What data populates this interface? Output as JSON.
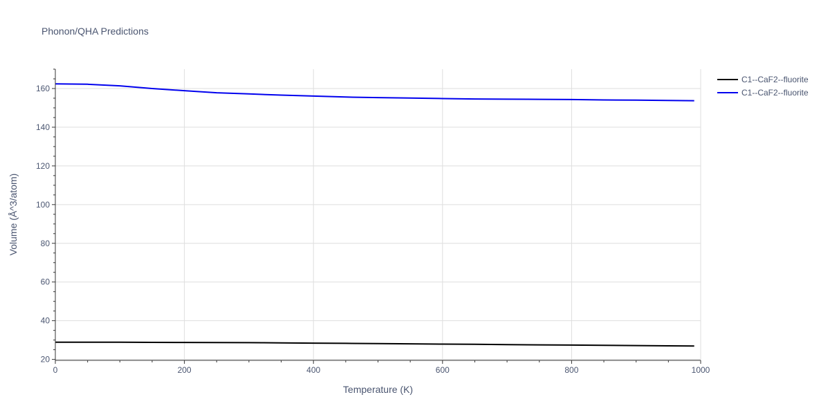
{
  "chart_data": {
    "type": "line",
    "title": "Phonon/QHA Predictions",
    "xlabel": "Temperature (K)",
    "ylabel": "Volume (Å^3/atom)",
    "xlim": [
      0,
      1000
    ],
    "ylim": [
      19.5,
      170
    ],
    "x_ticks": [
      0,
      200,
      400,
      600,
      800,
      1000
    ],
    "y_ticks": [
      20,
      40,
      60,
      80,
      100,
      120,
      140,
      160
    ],
    "grid": true,
    "legend_position": "top-right",
    "series": [
      {
        "name": "C1--CaF2--fluorite",
        "color": "#000000",
        "x": [
          0,
          50,
          100,
          150,
          200,
          250,
          300,
          320,
          350,
          400,
          450,
          500,
          550,
          600,
          650,
          700,
          750,
          800,
          850,
          900,
          950,
          990
        ],
        "y": [
          28.9,
          28.9,
          28.85,
          28.8,
          28.75,
          28.7,
          28.65,
          28.6,
          28.5,
          28.4,
          28.3,
          28.2,
          28.05,
          27.9,
          27.8,
          27.65,
          27.5,
          27.4,
          27.3,
          27.15,
          27.0,
          26.9
        ]
      },
      {
        "name": "C1--CaF2--fluorite",
        "color": "#0000ee",
        "x": [
          0,
          50,
          100,
          150,
          200,
          250,
          300,
          350,
          400,
          450,
          500,
          550,
          600,
          650,
          700,
          750,
          800,
          850,
          900,
          950,
          990
        ],
        "y": [
          162.4,
          162.2,
          161.4,
          160.0,
          158.9,
          157.8,
          157.2,
          156.6,
          156.1,
          155.6,
          155.3,
          155.1,
          154.8,
          154.6,
          154.5,
          154.4,
          154.3,
          154.1,
          154.0,
          153.8,
          153.7
        ]
      }
    ]
  }
}
